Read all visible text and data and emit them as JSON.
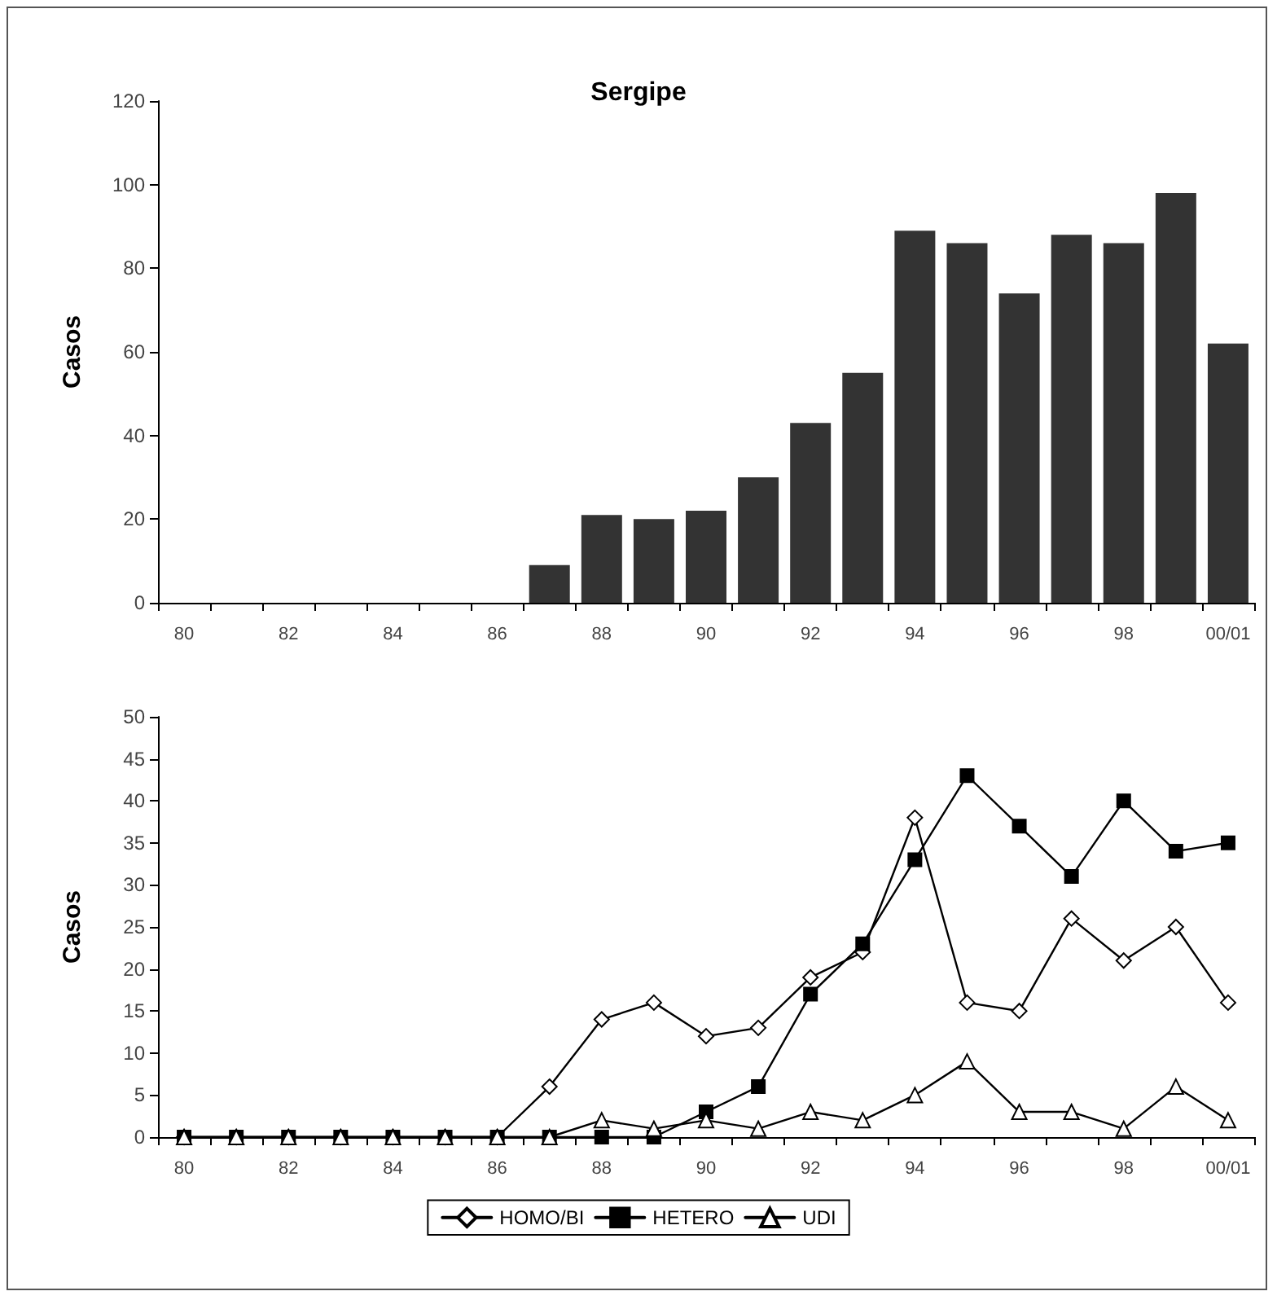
{
  "chart_data": [
    {
      "type": "bar",
      "title": "Sergipe",
      "ylabel": "Casos",
      "categories": [
        "80",
        null,
        "82",
        null,
        "84",
        null,
        "86",
        null,
        "88",
        null,
        "90",
        null,
        "92",
        null,
        "94",
        null,
        "96",
        null,
        "98",
        null,
        "00/01"
      ],
      "values": [
        0,
        0,
        0,
        0,
        0,
        0,
        0,
        9,
        21,
        20,
        22,
        30,
        43,
        55,
        89,
        86,
        74,
        88,
        86,
        98,
        62
      ],
      "color": "#333333",
      "ylim": [
        0,
        120
      ],
      "yticks": [
        0,
        20,
        40,
        60,
        80,
        100,
        120
      ],
      "grid": false,
      "legend": false
    },
    {
      "type": "line",
      "ylabel": "Casos",
      "categories": [
        "80",
        null,
        "82",
        null,
        "84",
        null,
        "86",
        null,
        "88",
        null,
        "90",
        null,
        "92",
        null,
        "94",
        null,
        "96",
        null,
        "98",
        null,
        "00/01"
      ],
      "series": [
        {
          "name": "HOMO/BI",
          "color": "#000000",
          "marker": "diamond",
          "values": [
            0,
            0,
            0,
            0,
            0,
            0,
            0,
            6,
            14,
            16,
            12,
            13,
            19,
            22,
            38,
            16,
            15,
            26,
            21,
            25,
            16
          ]
        },
        {
          "name": "HETERO",
          "color": "#000000",
          "marker": "square",
          "values": [
            0,
            0,
            0,
            0,
            0,
            0,
            0,
            0,
            0,
            0,
            3,
            6,
            17,
            23,
            33,
            43,
            37,
            31,
            40,
            34,
            35
          ]
        },
        {
          "name": "UDI",
          "color": "#000000",
          "marker": "triangle",
          "values": [
            0,
            0,
            0,
            0,
            0,
            0,
            0,
            0,
            2,
            1,
            2,
            1,
            3,
            2,
            5,
            9,
            3,
            3,
            1,
            6,
            2
          ]
        }
      ],
      "ylim": [
        0,
        50
      ],
      "yticks": [
        0,
        5,
        10,
        15,
        20,
        25,
        30,
        35,
        40,
        45,
        50
      ],
      "grid": false,
      "legend": "bottom",
      "line_style": "solid"
    }
  ]
}
